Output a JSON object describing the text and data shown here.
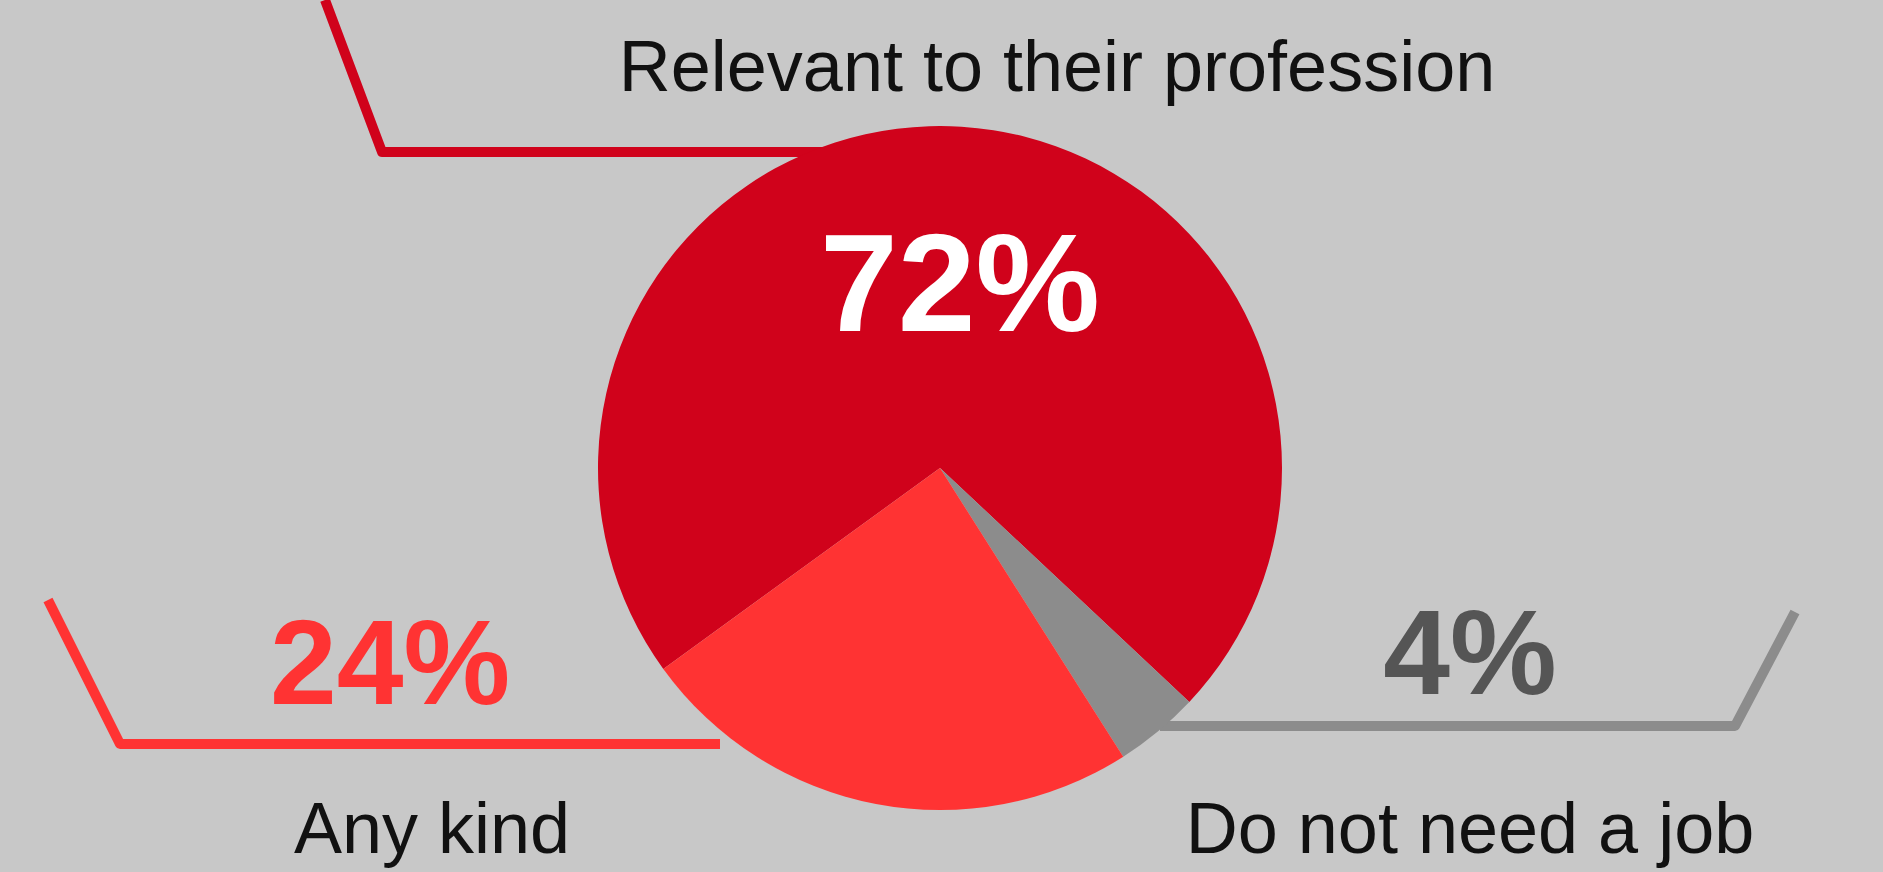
{
  "chart_data": {
    "type": "pie",
    "categories": [
      "Relevant to their profession",
      "Do not need a job",
      "Any kind"
    ],
    "values": [
      72,
      4,
      24
    ],
    "colors": [
      "#d0021b",
      "#8c8c8c",
      "#ff3333"
    ],
    "value_labels": [
      "72%",
      "4%",
      "24%"
    ]
  }
}
